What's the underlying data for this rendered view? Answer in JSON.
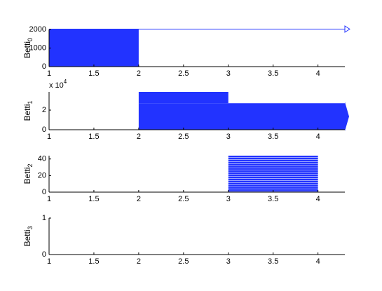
{
  "chart_data": [
    {
      "type": "barcode",
      "ylabel": "Betti",
      "ylabel_sub": "0",
      "color": "#2233ff",
      "intervals": [
        {
          "birth": 1,
          "death": 2,
          "count": 2000
        },
        {
          "birth": 1,
          "death": null,
          "count": 1
        }
      ],
      "xlim": [
        1,
        4.3
      ],
      "xticks": [
        1,
        1.5,
        2,
        2.5,
        3,
        3.5,
        4
      ],
      "ylim": [
        0,
        2000
      ],
      "yticks": [
        0,
        1000,
        2000
      ]
    },
    {
      "type": "barcode",
      "ylabel": "Betti",
      "ylabel_sub": "1",
      "color": "#2233ff",
      "y_scale_label": "x 10",
      "y_scale_exp": "4",
      "intervals": [
        {
          "birth": 2,
          "death": null,
          "count": 2.7
        },
        {
          "birth": 2,
          "death": 3,
          "count": 1.16
        }
      ],
      "xlim": [
        1,
        4.3
      ],
      "xticks": [
        1,
        1.5,
        2,
        2.5,
        3,
        3.5,
        4
      ],
      "ylim": [
        0,
        3.86
      ],
      "yticks": [
        0,
        2
      ]
    },
    {
      "type": "barcode",
      "ylabel": "Betti",
      "ylabel_sub": "2",
      "color": "#2233ff",
      "fill_style": "striped",
      "intervals": [
        {
          "birth": 3,
          "death": 4,
          "count": 44
        }
      ],
      "xlim": [
        1,
        4.3
      ],
      "xticks": [
        1,
        1.5,
        2,
        2.5,
        3,
        3.5,
        4
      ],
      "ylim": [
        0,
        44
      ],
      "yticks": [
        0,
        20,
        40
      ]
    },
    {
      "type": "barcode",
      "ylabel": "Betti",
      "ylabel_sub": "3",
      "color": "#2233ff",
      "intervals": [],
      "xlim": [
        1,
        4.3
      ],
      "xticks": [
        1,
        1.5,
        2,
        2.5,
        3,
        3.5,
        4
      ],
      "ylim": [
        0,
        1
      ],
      "yticks": [
        0,
        1
      ]
    }
  ]
}
